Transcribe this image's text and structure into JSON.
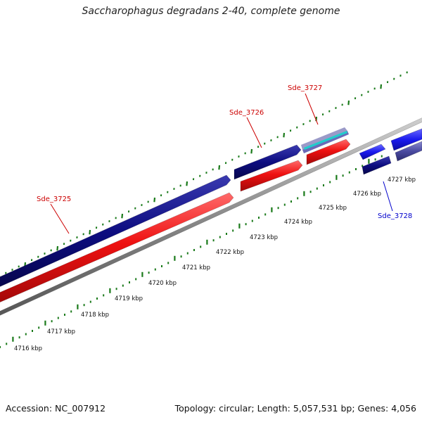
{
  "title": "Saccharophagus degradans 2-40, complete genome",
  "footer": {
    "accession": "Accession: NC_007912",
    "summary": "Topology: circular; Length: 5,057,531 bp; Genes: 4,056"
  },
  "colors": {
    "forward_cds": "#0d0d80",
    "reverse_cds": "#ee1111",
    "backbone": "#8a8a8a",
    "tick": "#1a7a1a",
    "label_forward": "#cc0000",
    "label_reverse": "#0000cc",
    "bright_blue": "#1a1aee",
    "slate_blue": "#4a4aa0"
  },
  "scale": {
    "tick_labels": [
      "4716 kbp",
      "4717 kbp",
      "4718 kbp",
      "4719 kbp",
      "4720 kbp",
      "4721 kbp",
      "4722 kbp",
      "4723 kbp",
      "4724 kbp",
      "4725 kbp",
      "4726 kbp",
      "4727 kbp"
    ]
  },
  "genes": [
    {
      "name": "Sde_3725",
      "strand": "forward"
    },
    {
      "name": "Sde_3726",
      "strand": "forward"
    },
    {
      "name": "Sde_3727",
      "strand": "forward"
    },
    {
      "name": "Sde_3728",
      "strand": "reverse"
    }
  ]
}
